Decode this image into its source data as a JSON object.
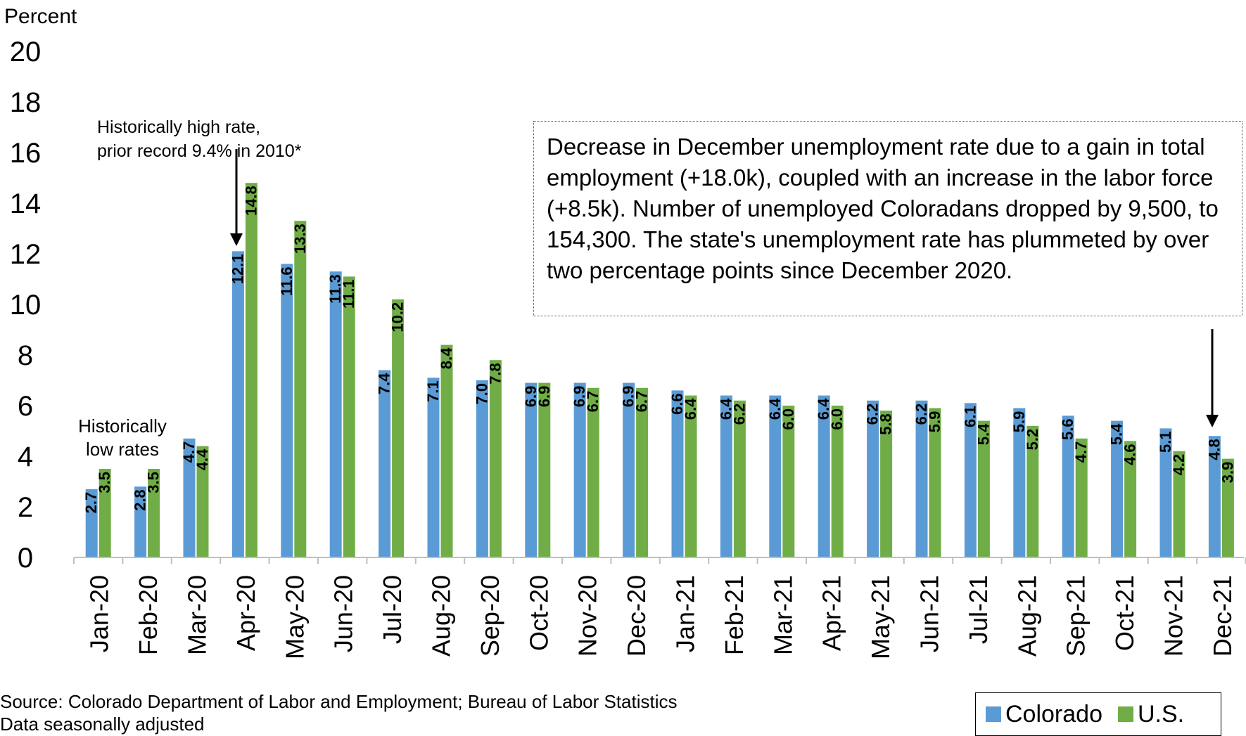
{
  "chart_data": {
    "type": "bar",
    "ylabel": "Percent",
    "ylim": [
      0,
      20
    ],
    "yticks": [
      0,
      2,
      4,
      6,
      8,
      10,
      12,
      14,
      16,
      18,
      20
    ],
    "categories": [
      "Jan-20",
      "Feb-20",
      "Mar-20",
      "Apr-20",
      "May-20",
      "Jun-20",
      "Jul-20",
      "Aug-20",
      "Sep-20",
      "Oct-20",
      "Nov-20",
      "Dec-20",
      "Jan-21",
      "Feb-21",
      "Mar-21",
      "Apr-21",
      "May-21",
      "Jun-21",
      "Jul-21",
      "Aug-21",
      "Sep-21",
      "Oct-21",
      "Nov-21",
      "Dec-21"
    ],
    "series": [
      {
        "name": "Colorado",
        "color": "#5b9bd5",
        "values": [
          2.7,
          2.8,
          4.7,
          12.1,
          11.6,
          11.3,
          7.4,
          7.1,
          7.0,
          6.9,
          6.9,
          6.9,
          6.6,
          6.4,
          6.4,
          6.4,
          6.2,
          6.2,
          6.1,
          5.9,
          5.6,
          5.4,
          5.1,
          4.8
        ],
        "labels": [
          "2.7",
          "2.8",
          "4.7",
          "12.1",
          "11.6",
          "11.3",
          "7.4",
          "7.1",
          "7.0",
          "6.9",
          "6.9",
          "6.9",
          "6.6",
          "6.4",
          "6.4",
          "6.4",
          "6.2",
          "6.2",
          "6.1",
          "5.9",
          "5.6",
          "5.4",
          "5.1",
          "4.8"
        ]
      },
      {
        "name": "U.S.",
        "color": "#70ad47",
        "values": [
          3.5,
          3.5,
          4.4,
          14.8,
          13.3,
          11.1,
          10.2,
          8.4,
          7.8,
          6.9,
          6.7,
          6.7,
          6.4,
          6.2,
          6.0,
          6.0,
          5.8,
          5.9,
          5.4,
          5.2,
          4.7,
          4.6,
          4.2,
          3.9
        ],
        "labels": [
          "3.5",
          "3.5",
          "4.4",
          "14.8",
          "13.3",
          "11.1",
          "10.2",
          "8.4",
          "7.8",
          "6.9",
          "6.7",
          "6.7",
          "6.4",
          "6.2",
          "6.0",
          "6.0",
          "5.8",
          "5.9",
          "5.4",
          "5.2",
          "4.7",
          "4.6",
          "4.2",
          "3.9"
        ]
      }
    ],
    "annotations": {
      "low_rates": [
        "Historically",
        "low rates"
      ],
      "high_rate": [
        "Historically high rate,",
        "prior record 9.4% in 2010*"
      ],
      "december_note": "Decrease in December unemployment rate due to a gain in total employment (+18.0k), coupled with an increase in the labor force (+8.5k). Number of unemployed Coloradans dropped by 9,500, to 154,300. The state's unemployment rate has plummeted by over two percentage points since December 2020."
    },
    "source": [
      "Source: Colorado Department of Labor and Employment; Bureau of Labor Statistics",
      "Data seasonally adjusted"
    ],
    "legend_position": "bottom-right"
  }
}
